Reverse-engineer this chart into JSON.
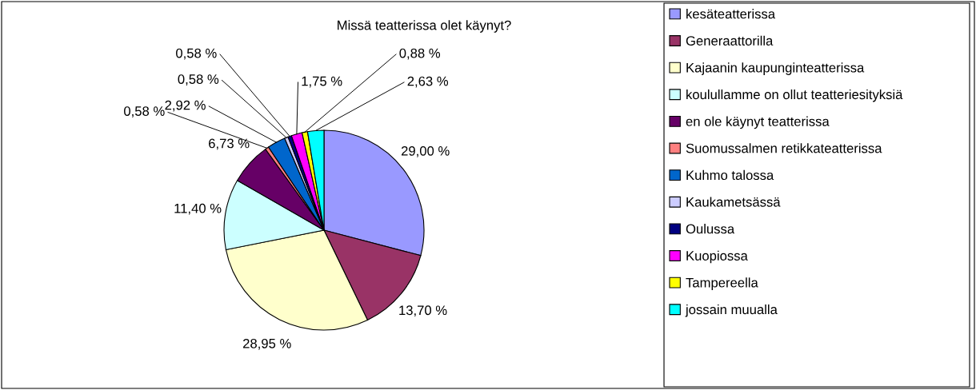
{
  "chart_data": {
    "type": "pie",
    "title": "Missä teatterissa olet käynyt?",
    "categories": [
      "kesäteatterissa",
      "Generaattorilla",
      "Kajaanin kaupunginteatterissa",
      "koulullamme on ollut teatteriesityksiä",
      "en ole käynyt teatterissa",
      "Suomussalmen retikkateatterissa",
      "Kuhmo talossa",
      "Kaukametsässä",
      "Oulussa",
      "Kuopiossa",
      "Tampereella",
      "jossain muualla"
    ],
    "values": [
      29.0,
      13.7,
      28.95,
      11.4,
      6.73,
      0.58,
      2.92,
      0.58,
      0.58,
      1.75,
      0.88,
      2.63
    ],
    "value_labels": [
      "29,00 %",
      "13,70 %",
      "28,95 %",
      "11,40 %",
      "6,73 %",
      "0,58 %",
      "2,92 %",
      "0,58 %",
      "0,58 %",
      "1,75 %",
      "0,88 %",
      "2,63 %"
    ],
    "colors": [
      "#9999ff",
      "#993366",
      "#ffffcc",
      "#ccffff",
      "#660066",
      "#ff8080",
      "#0066cc",
      "#ccccff",
      "#000080",
      "#ff00ff",
      "#ffff00",
      "#00ffff"
    ],
    "legend": "right"
  }
}
